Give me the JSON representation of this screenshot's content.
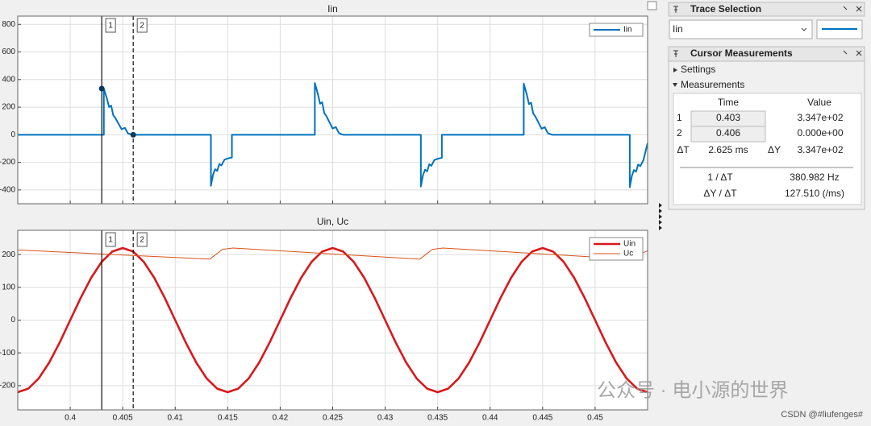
{
  "chart_data": [
    {
      "type": "line",
      "title": "Iin",
      "series": [
        {
          "name": "Iin",
          "color": "#0072BD",
          "line_width": 2,
          "x": [
            0.395,
            0.4032,
            0.4032,
            0.4035,
            0.4037,
            0.4039,
            0.4041,
            0.4043,
            0.4046,
            0.4049,
            0.4052,
            0.4055,
            0.4059,
            0.4134,
            0.4134,
            0.4136,
            0.4138,
            0.414,
            0.4142,
            0.4144,
            0.4147,
            0.415,
            0.4154,
            0.4154,
            0.4233,
            0.4233,
            0.4236,
            0.4238,
            0.424,
            0.4242,
            0.4244,
            0.4247,
            0.425,
            0.4253,
            0.4256,
            0.426,
            0.4334,
            0.4334,
            0.4336,
            0.4338,
            0.434,
            0.4342,
            0.4344,
            0.4347,
            0.435,
            0.4354,
            0.4354,
            0.4432,
            0.4432,
            0.4435,
            0.4437,
            0.4439,
            0.4441,
            0.4443,
            0.4446,
            0.4449,
            0.4452,
            0.4455,
            0.4459,
            0.4533,
            0.4533,
            0.4535,
            0.4537,
            0.4539,
            0.4541,
            0.4543,
            0.4546,
            0.455
          ],
          "values": [
            0,
            0,
            335,
            261,
            201,
            211,
            141,
            121,
            80,
            40,
            50,
            10,
            0,
            0,
            -370,
            -290,
            -250,
            -262,
            -212,
            -222,
            -180,
            -172,
            -165,
            0,
            0,
            375,
            292,
            225,
            236,
            157,
            135,
            90,
            45,
            56,
            11,
            0,
            0,
            -375,
            -294,
            -253,
            -265,
            -214,
            -225,
            -182,
            -174,
            -167,
            0,
            0,
            370,
            289,
            222,
            233,
            155,
            133,
            89,
            44,
            55,
            11,
            0,
            0,
            -380,
            -298,
            -256,
            -268,
            -216,
            -228,
            -184,
            -60
          ]
        }
      ],
      "xlim": [
        0.395,
        0.455
      ],
      "ylim": [
        -500,
        860
      ],
      "xticks": [
        0.4,
        0.405,
        0.41,
        0.415,
        0.42,
        0.425,
        0.43,
        0.435,
        0.44,
        0.445,
        0.45
      ],
      "show_xtick_labels": false,
      "yticks": [
        800,
        600,
        400,
        200,
        0,
        -200,
        -400
      ],
      "grid": true,
      "legend": "upper right",
      "cursor_dots": true
    },
    {
      "type": "line",
      "title": "Uin, Uc",
      "series": [
        {
          "name": "Uin",
          "color": "#D7191C",
          "line_width": 2.6,
          "x": [
            0.395,
            0.396,
            0.397,
            0.398,
            0.399,
            0.4,
            0.401,
            0.402,
            0.403,
            0.404,
            0.405,
            0.406,
            0.407,
            0.408,
            0.409,
            0.41,
            0.411,
            0.412,
            0.413,
            0.414,
            0.415,
            0.416,
            0.417,
            0.418,
            0.419,
            0.42,
            0.421,
            0.422,
            0.423,
            0.424,
            0.425,
            0.426,
            0.427,
            0.428,
            0.429,
            0.43,
            0.431,
            0.432,
            0.433,
            0.434,
            0.435,
            0.436,
            0.437,
            0.438,
            0.439,
            0.44,
            0.441,
            0.442,
            0.443,
            0.444,
            0.445,
            0.446,
            0.447,
            0.448,
            0.449,
            0.45,
            0.451,
            0.452,
            0.453,
            0.454,
            0.455
          ],
          "values": [
            -220,
            -209.2,
            -178,
            -129.3,
            -68,
            0,
            68,
            129.3,
            178,
            209.2,
            220,
            209.2,
            178,
            129.3,
            68,
            0,
            -68,
            -129.3,
            -178,
            -209.2,
            -220,
            -209.2,
            -178,
            -129.3,
            -68,
            0,
            68,
            129.3,
            178,
            209.2,
            220,
            209.2,
            178,
            129.3,
            68,
            0,
            -68,
            -129.3,
            -178,
            -209.2,
            -220,
            -209.2,
            -178,
            -129.3,
            -68,
            0,
            68,
            129.3,
            178,
            209.2,
            220,
            209.2,
            178,
            129.3,
            68,
            0,
            -68,
            -129.3,
            -178,
            -209.2,
            -220
          ]
        },
        {
          "name": "Uc",
          "color": "#D95319",
          "line_width": 1,
          "x": [
            0.395,
            0.4133,
            0.4145,
            0.4155,
            0.4333,
            0.4345,
            0.4355,
            0.4533,
            0.455
          ],
          "values": [
            214,
            186,
            216,
            220,
            186,
            216,
            220,
            186,
            212
          ]
        }
      ],
      "xlim": [
        0.395,
        0.455
      ],
      "ylim": [
        -274,
        274
      ],
      "xticks": [
        0.4,
        0.405,
        0.41,
        0.415,
        0.42,
        0.425,
        0.43,
        0.435,
        0.44,
        0.445,
        0.45
      ],
      "show_xtick_labels": true,
      "yticks": [
        200,
        100,
        0,
        -100,
        -200
      ],
      "grid": true,
      "legend": "upper right",
      "cursor_dots": false
    }
  ],
  "trace_selection": {
    "title": "Trace Selection",
    "selected": "Iin"
  },
  "cursor_measurements": {
    "title": "Cursor Measurements",
    "settings": "Settings",
    "measurements": "Measurements",
    "time_header": "Time",
    "value_header": "Value",
    "cursors": [
      {
        "label": "1",
        "time": 0.403,
        "value": 334.7,
        "value_label": "3.347e+02",
        "line_style": "solid"
      },
      {
        "label": "2",
        "time": 0.406,
        "value": 0,
        "value_label": "0.000e+00",
        "line_style": "dashed"
      }
    ],
    "delta_t_label": "ΔT",
    "delta_t": "2.625 ms",
    "delta_y_label": "ΔY",
    "delta_y": "3.347e+02",
    "inv_dt_label": "1 / ΔT",
    "inv_dt": "380.982 Hz",
    "dydt_label": "ΔY / ΔT",
    "dydt": "127.510 (/ms)"
  },
  "watermark": "公众号 · 电小源的世界",
  "credit": "CSDN @#liufenges#"
}
